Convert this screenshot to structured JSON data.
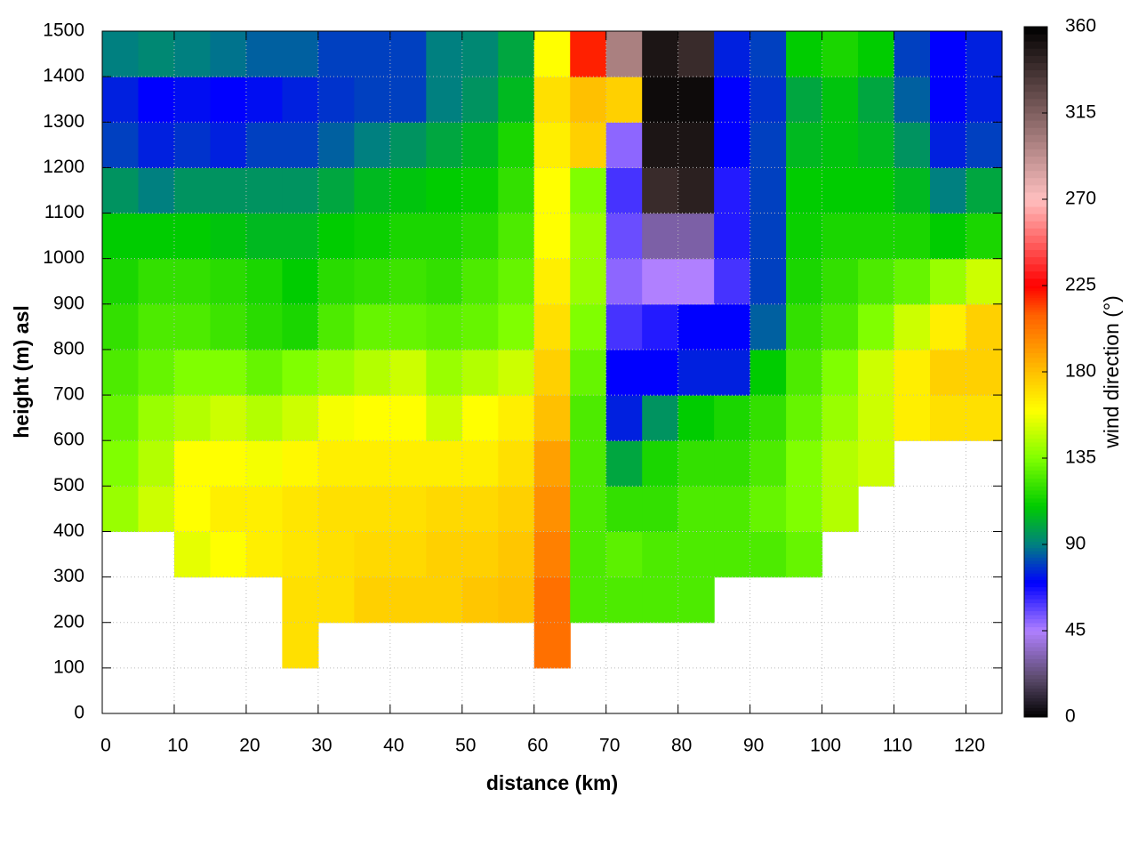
{
  "chart_data": {
    "type": "heatmap",
    "xlabel": "distance (km)",
    "ylabel": "height (m) asl",
    "colorbar_label": "wind direction (°)",
    "xlim": [
      0,
      125
    ],
    "xticks": [
      0,
      10,
      20,
      30,
      40,
      50,
      60,
      70,
      80,
      90,
      100,
      110,
      120
    ],
    "ylim": [
      0,
      1500
    ],
    "yticks": [
      0,
      100,
      200,
      300,
      400,
      500,
      600,
      700,
      800,
      900,
      1000,
      1100,
      1200,
      1300,
      1400,
      1500
    ],
    "clim": [
      0,
      360
    ],
    "cticks": [
      0,
      45,
      90,
      135,
      180,
      225,
      270,
      315,
      360
    ],
    "grid": true,
    "colorscale": [
      {
        "value": 0,
        "color": "#000000"
      },
      {
        "value": 20,
        "color": "#5a4a6a"
      },
      {
        "value": 45,
        "color": "#b080ff"
      },
      {
        "value": 70,
        "color": "#0000ff"
      },
      {
        "value": 90,
        "color": "#008080"
      },
      {
        "value": 110,
        "color": "#00cc00"
      },
      {
        "value": 135,
        "color": "#80ff00"
      },
      {
        "value": 160,
        "color": "#ffff00"
      },
      {
        "value": 180,
        "color": "#ffc000"
      },
      {
        "value": 210,
        "color": "#ff6000"
      },
      {
        "value": 225,
        "color": "#ff0000"
      },
      {
        "value": 270,
        "color": "#ffc0c0"
      },
      {
        "value": 315,
        "color": "#806060"
      },
      {
        "value": 360,
        "color": "#000000"
      }
    ],
    "x": [
      2.5,
      7.5,
      12.5,
      17.5,
      22.5,
      27.5,
      32.5,
      37.5,
      42.5,
      47.5,
      52.5,
      57.5,
      62.5,
      67.5,
      72.5,
      77.5,
      82.5,
      87.5,
      92.5,
      97.5,
      102.5,
      107.5,
      112.5,
      117.5,
      122.5
    ],
    "y": [
      50,
      150,
      250,
      350,
      450,
      550,
      650,
      750,
      850,
      950,
      1050,
      1150,
      1250,
      1350,
      1450
    ],
    "z": [
      [
        null,
        null,
        null,
        null,
        null,
        null,
        null,
        null,
        null,
        null,
        null,
        null,
        null,
        null,
        null,
        null,
        null,
        null,
        null,
        null,
        null,
        null,
        null,
        null,
        null
      ],
      [
        null,
        null,
        null,
        null,
        null,
        170,
        null,
        null,
        null,
        null,
        null,
        null,
        205,
        null,
        null,
        null,
        null,
        null,
        null,
        null,
        null,
        null,
        null,
        null,
        null
      ],
      [
        null,
        null,
        null,
        null,
        null,
        170,
        170,
        175,
        175,
        175,
        178,
        180,
        205,
        125,
        125,
        125,
        125,
        null,
        null,
        null,
        null,
        null,
        null,
        null,
        null
      ],
      [
        null,
        null,
        155,
        160,
        165,
        168,
        170,
        172,
        172,
        175,
        175,
        178,
        200,
        125,
        128,
        125,
        125,
        125,
        125,
        130,
        null,
        null,
        null,
        null,
        null
      ],
      [
        140,
        150,
        160,
        165,
        165,
        168,
        170,
        170,
        170,
        172,
        172,
        175,
        195,
        125,
        120,
        120,
        125,
        125,
        130,
        135,
        145,
        null,
        null,
        null,
        null
      ],
      [
        135,
        145,
        160,
        160,
        158,
        162,
        165,
        165,
        165,
        165,
        165,
        170,
        190,
        125,
        100,
        115,
        120,
        120,
        125,
        135,
        145,
        150,
        null,
        null,
        null
      ],
      [
        130,
        140,
        145,
        150,
        145,
        150,
        158,
        160,
        160,
        150,
        160,
        165,
        180,
        125,
        75,
        95,
        110,
        115,
        120,
        130,
        140,
        150,
        165,
        170,
        170
      ],
      [
        125,
        130,
        135,
        135,
        130,
        135,
        140,
        145,
        150,
        140,
        145,
        150,
        175,
        130,
        70,
        70,
        75,
        75,
        110,
        125,
        135,
        150,
        165,
        175,
        175
      ],
      [
        120,
        125,
        125,
        122,
        118,
        115,
        125,
        130,
        130,
        128,
        130,
        135,
        170,
        135,
        60,
        65,
        70,
        70,
        85,
        120,
        125,
        135,
        150,
        165,
        175
      ],
      [
        115,
        120,
        120,
        118,
        115,
        110,
        118,
        120,
        122,
        120,
        125,
        130,
        165,
        140,
        50,
        45,
        45,
        60,
        80,
        115,
        120,
        125,
        130,
        140,
        150
      ],
      [
        110,
        110,
        110,
        108,
        105,
        105,
        110,
        112,
        115,
        115,
        118,
        125,
        160,
        140,
        55,
        30,
        30,
        65,
        80,
        112,
        115,
        115,
        115,
        110,
        115
      ],
      [
        95,
        90,
        95,
        95,
        95,
        95,
        100,
        105,
        108,
        110,
        112,
        120,
        160,
        135,
        60,
        340,
        345,
        65,
        80,
        110,
        110,
        110,
        105,
        90,
        100
      ],
      [
        80,
        75,
        78,
        75,
        80,
        80,
        85,
        90,
        95,
        100,
        105,
        115,
        165,
        175,
        50,
        350,
        350,
        70,
        80,
        105,
        108,
        105,
        95,
        75,
        80
      ],
      [
        75,
        70,
        72,
        70,
        72,
        75,
        78,
        80,
        80,
        90,
        95,
        105,
        170,
        180,
        175,
        355,
        355,
        70,
        78,
        100,
        108,
        100,
        85,
        70,
        75
      ],
      [
        90,
        92,
        90,
        88,
        85,
        85,
        80,
        80,
        80,
        90,
        92,
        100,
        160,
        220,
        300,
        350,
        340,
        75,
        80,
        110,
        115,
        110,
        80,
        70,
        75
      ]
    ]
  }
}
